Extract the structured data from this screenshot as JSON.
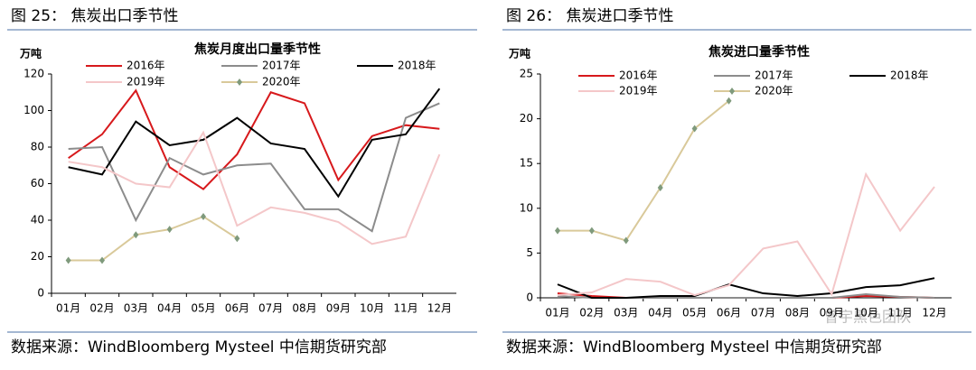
{
  "chart_data": [
    {
      "type": "line",
      "caption": "图 25：    焦炭出口季节性",
      "title": "焦炭月度出口量季节性",
      "y_label": "万吨",
      "categories": [
        "01月",
        "02月",
        "03月",
        "04月",
        "05月",
        "06月",
        "07月",
        "08月",
        "09月",
        "10月",
        "11月",
        "12月"
      ],
      "series": [
        {
          "name": "2016年",
          "color": "#d7191c",
          "values": [
            74,
            87,
            111,
            69,
            57,
            76,
            110,
            104,
            62,
            86,
            92,
            90
          ]
        },
        {
          "name": "2017年",
          "color": "#8c8c8c",
          "values": [
            79,
            80,
            40,
            74,
            65,
            70,
            71,
            46,
            46,
            34,
            96,
            104
          ]
        },
        {
          "name": "2018年",
          "color": "#000000",
          "values": [
            69,
            65,
            94,
            81,
            84,
            96,
            82,
            79,
            53,
            84,
            87,
            112
          ]
        },
        {
          "name": "2019年",
          "color": "#f4c7c9",
          "values": [
            72,
            69,
            60,
            58,
            88,
            37,
            47,
            44,
            39,
            27,
            31,
            76
          ]
        },
        {
          "name": "2020年",
          "color": "#d9c99a",
          "marker": "#7f9a7c",
          "values": [
            18,
            18,
            32,
            35,
            42,
            30,
            null,
            null,
            null,
            null,
            null,
            null
          ]
        }
      ],
      "ylim": [
        0,
        120
      ],
      "yticks": [
        0,
        20,
        40,
        60,
        80,
        100,
        120
      ],
      "source": "数据来源：WindBloomberg Mysteel 中信期货研究部"
    },
    {
      "type": "line",
      "caption": "图 26：    焦炭进口季节性",
      "title": "焦炭进口量季节性",
      "y_label": "万吨",
      "categories": [
        "01月",
        "02月",
        "03月",
        "04月",
        "05月",
        "06月",
        "07月",
        "08月",
        "09月",
        "10月",
        "11月",
        "12月"
      ],
      "series": [
        {
          "name": "2016年",
          "color": "#d7191c",
          "values": [
            0.5,
            0.2,
            0,
            0,
            0,
            0,
            0,
            0,
            0,
            0.2,
            0.1,
            0
          ]
        },
        {
          "name": "2017年",
          "color": "#8c8c8c",
          "values": [
            0.2,
            0,
            0,
            0,
            0,
            0,
            0,
            0,
            0,
            0.4,
            0.1,
            0
          ]
        },
        {
          "name": "2018年",
          "color": "#000000",
          "values": [
            1.5,
            0,
            0,
            0.2,
            0.2,
            1.5,
            0.5,
            0.2,
            0.5,
            1.2,
            1.4,
            2.2
          ]
        },
        {
          "name": "2019年",
          "color": "#f4c7c9",
          "values": [
            0.3,
            0.6,
            2.1,
            1.8,
            0.3,
            1.4,
            5.5,
            6.3,
            0.4,
            13.8,
            7.5,
            12.4
          ]
        },
        {
          "name": "2020年",
          "color": "#d9c99a",
          "marker": "#7f9a7c",
          "values": [
            7.5,
            7.5,
            6.4,
            12.3,
            18.9,
            22.0,
            null,
            null,
            null,
            null,
            null,
            null
          ]
        }
      ],
      "ylim": [
        0,
        25
      ],
      "yticks": [
        0,
        5,
        10,
        15,
        20,
        25
      ],
      "source": "数据来源：WindBloomberg Mysteel 中信期货研究部"
    }
  ],
  "watermark": "曾宇黑色团队"
}
